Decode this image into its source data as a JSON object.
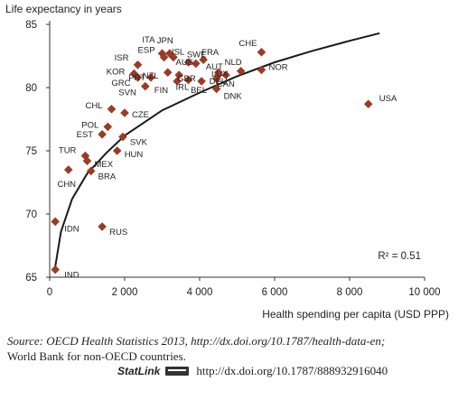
{
  "chart_data": {
    "type": "scatter",
    "ylabel": "Life expectancy in years",
    "xlabel": "Health spending per capita (USD PPP)",
    "xlim": [
      0,
      10000
    ],
    "ylim": [
      65,
      85
    ],
    "x_ticks": [
      0,
      2000,
      4000,
      6000,
      8000,
      10000
    ],
    "x_tick_labels": [
      "0",
      "2 000",
      "4 000",
      "6 000",
      "8 000",
      "10 000"
    ],
    "y_ticks": [
      65,
      70,
      75,
      80,
      85
    ],
    "y_tick_labels": [
      "65",
      "70",
      "75",
      "80",
      "85"
    ],
    "grid": false,
    "marker_color": "#9b3b24",
    "curve_color": "#1a1a1a",
    "annotation": "R² = 0.51",
    "trend": {
      "type": "logarithmic",
      "points": [
        [
          130,
          65.5
        ],
        [
          300,
          68.6
        ],
        [
          600,
          71.2
        ],
        [
          1000,
          73.2
        ],
        [
          1500,
          74.8
        ],
        [
          2000,
          76.2
        ],
        [
          3000,
          78.2
        ],
        [
          4000,
          79.6
        ],
        [
          5000,
          80.9
        ],
        [
          6000,
          82.0
        ],
        [
          7000,
          82.9
        ],
        [
          8000,
          83.7
        ],
        [
          8800,
          84.3
        ]
      ]
    },
    "points": [
      {
        "label": "USA",
        "x": 8500,
        "y": 78.7
      },
      {
        "label": "NOR",
        "x": 5650,
        "y": 81.4
      },
      {
        "label": "CHE",
        "x": 5650,
        "y": 82.8
      },
      {
        "label": "NLD",
        "x": 5100,
        "y": 81.3
      },
      {
        "label": "CAN",
        "x": 4500,
        "y": 81.0
      },
      {
        "label": "DNK",
        "x": 4450,
        "y": 79.9
      },
      {
        "label": "AUT",
        "x": 4500,
        "y": 81.2
      },
      {
        "label": "DEU",
        "x": 4450,
        "y": 80.7
      },
      {
        "label": "LUX",
        "x": 4700,
        "y": 81.0
      },
      {
        "label": "FRA",
        "x": 4100,
        "y": 82.2
      },
      {
        "label": "SWE",
        "x": 3900,
        "y": 81.9
      },
      {
        "label": "BEL",
        "x": 4050,
        "y": 80.5
      },
      {
        "label": "IRL",
        "x": 3700,
        "y": 80.6
      },
      {
        "label": "GBR",
        "x": 3450,
        "y": 81.0
      },
      {
        "label": "AUS",
        "x": 3700,
        "y": 82.0
      },
      {
        "label": "ISL",
        "x": 3300,
        "y": 82.4
      },
      {
        "label": "JPN",
        "x": 3200,
        "y": 82.7
      },
      {
        "label": "ITA",
        "x": 3000,
        "y": 82.7
      },
      {
        "label": "NZL",
        "x": 3150,
        "y": 81.2
      },
      {
        "label": "FIN",
        "x": 3400,
        "y": 80.5
      },
      {
        "label": "ESP",
        "x": 3050,
        "y": 82.4
      },
      {
        "label": "PRT",
        "x": 2700,
        "y": 80.8
      },
      {
        "label": "GRC",
        "x": 2350,
        "y": 80.8
      },
      {
        "label": "KOR",
        "x": 2250,
        "y": 81.1
      },
      {
        "label": "ISR",
        "x": 2350,
        "y": 81.8
      },
      {
        "label": "SVN",
        "x": 2550,
        "y": 80.1
      },
      {
        "label": "CZE",
        "x": 2000,
        "y": 78.0
      },
      {
        "label": "CHL",
        "x": 1650,
        "y": 78.3
      },
      {
        "label": "POL",
        "x": 1550,
        "y": 76.9
      },
      {
        "label": "EST",
        "x": 1400,
        "y": 76.3
      },
      {
        "label": "SVK",
        "x": 1950,
        "y": 76.1
      },
      {
        "label": "HUN",
        "x": 1800,
        "y": 75.0
      },
      {
        "label": "MEX",
        "x": 1000,
        "y": 74.2
      },
      {
        "label": "TUR",
        "x": 950,
        "y": 74.6
      },
      {
        "label": "BRA",
        "x": 1100,
        "y": 73.4
      },
      {
        "label": "CHN",
        "x": 500,
        "y": 73.5
      },
      {
        "label": "IDN",
        "x": 150,
        "y": 69.4
      },
      {
        "label": "RUS",
        "x": 1400,
        "y": 69.0
      },
      {
        "label": "IND",
        "x": 150,
        "y": 65.6
      }
    ]
  },
  "source": {
    "prefix": "Source: ",
    "text_italic": "OECD Health Statistics 2013, http://dx.doi.org/10.1787/health-data-en;",
    "line2": "World Bank for non-OECD countries."
  },
  "statlink": {
    "brand": "StatLink",
    "url": "http://dx.doi.org/10.1787/888932916040"
  }
}
